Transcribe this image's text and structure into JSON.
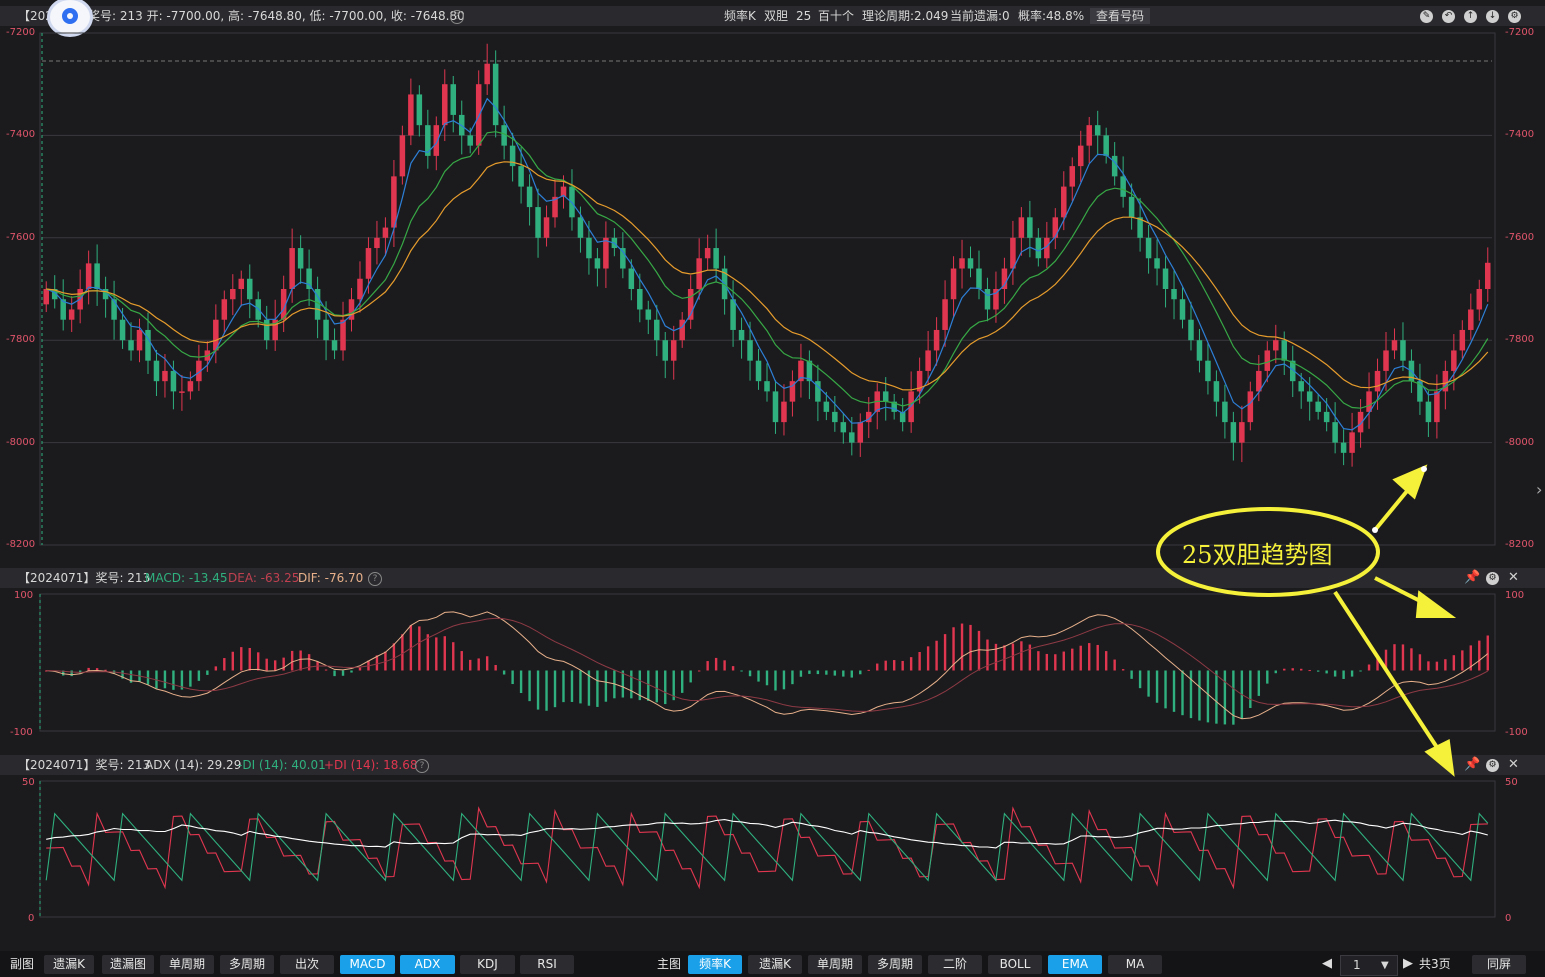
{
  "main": {
    "header": {
      "prefix": "【202",
      "info": "奖号: 213   开: -7700.00, 高: -7648.80, 低: -7700.00, 收: -7648.80",
      "freq": "频率K",
      "mode": "双胆",
      "num": "25",
      "group": "百十个",
      "period": "理论周期:2.049",
      "miss": "当前遗漏:0",
      "prob": "概率:48.8%",
      "lookup": "查看号码"
    },
    "y_labels": [
      "-7200",
      "-7400",
      "-7600",
      "-7800",
      "-8000",
      "-8200"
    ]
  },
  "macd": {
    "header": {
      "prefix": "【2024071】奖号: 213",
      "macd": "MACD: -13.45",
      "dea": "DEA: -63.25",
      "dif": "DIF: -76.70"
    },
    "y_labels": [
      "100",
      "-100"
    ]
  },
  "adx": {
    "header": {
      "prefix": "【2024071】奖号: 213",
      "adx": "ADX (14): 29.29",
      "mdi": "-DI (14): 40.01",
      "pdi": "+DI (14): 18.68"
    },
    "y_labels": [
      "50",
      "0"
    ]
  },
  "annotation": {
    "text": "25双胆趋势图"
  },
  "bottom": {
    "left_label": "副图",
    "left_buttons": [
      "遗漏K",
      "遗漏图",
      "单周期",
      "多周期",
      "出次",
      "MACD",
      "ADX",
      "KDJ",
      "RSI"
    ],
    "left_active": [
      "MACD",
      "ADX"
    ],
    "mid_label": "主图",
    "mid_buttons": [
      "频率K",
      "遗漏K",
      "单周期",
      "多周期",
      "二阶",
      "BOLL",
      "EMA",
      "MA"
    ],
    "mid_active": [
      "频率K",
      "EMA"
    ],
    "page_value": "1",
    "total_pages": "共3页",
    "same_screen": "同屏"
  },
  "colors": {
    "up": "#e0364f",
    "down": "#2fb07e",
    "ema_fast": "#2d7fd6",
    "ema_mid": "#37a845",
    "ema_slow": "#e69c2c",
    "accent": "#1aa0e8",
    "annotation": "#f5f03a"
  },
  "chart_data": [
    {
      "type": "candlestick",
      "title": "",
      "ylim": [
        -8200,
        -7200
      ],
      "yticks": [
        -7200,
        -7400,
        -7600,
        -7800,
        -8000,
        -8200
      ],
      "last": {
        "open": -7700.0,
        "high": -7648.8,
        "low": -7700.0,
        "close": -7648.8
      },
      "closes": [
        -7700,
        -7720,
        -7760,
        -7740,
        -7700,
        -7650,
        -7700,
        -7720,
        -7760,
        -7800,
        -7820,
        -7780,
        -7840,
        -7880,
        -7860,
        -7900,
        -7900,
        -7880,
        -7840,
        -7820,
        -7760,
        -7720,
        -7700,
        -7680,
        -7720,
        -7760,
        -7800,
        -7760,
        -7700,
        -7620,
        -7660,
        -7700,
        -7760,
        -7800,
        -7820,
        -7760,
        -7720,
        -7680,
        -7620,
        -7600,
        -7580,
        -7480,
        -7400,
        -7320,
        -7380,
        -7440,
        -7380,
        -7300,
        -7360,
        -7400,
        -7420,
        -7300,
        -7260,
        -7380,
        -7420,
        -7460,
        -7500,
        -7540,
        -7600,
        -7560,
        -7520,
        -7500,
        -7560,
        -7600,
        -7640,
        -7660,
        -7600,
        -7620,
        -7660,
        -7700,
        -7740,
        -7760,
        -7800,
        -7840,
        -7800,
        -7760,
        -7700,
        -7640,
        -7620,
        -7660,
        -7720,
        -7780,
        -7800,
        -7840,
        -7880,
        -7900,
        -7960,
        -7920,
        -7880,
        -7840,
        -7880,
        -7920,
        -7940,
        -7960,
        -7980,
        -8000,
        -7960,
        -7940,
        -7900,
        -7920,
        -7940,
        -7960,
        -7900,
        -7860,
        -7820,
        -7780,
        -7720,
        -7660,
        -7640,
        -7660,
        -7700,
        -7740,
        -7700,
        -7660,
        -7600,
        -7560,
        -7600,
        -7640,
        -7600,
        -7560,
        -7500,
        -7460,
        -7420,
        -7380,
        -7400,
        -7440,
        -7480,
        -7520,
        -7560,
        -7600,
        -7640,
        -7660,
        -7700,
        -7720,
        -7760,
        -7800,
        -7840,
        -7880,
        -7920,
        -7960,
        -8000,
        -7960,
        -7900,
        -7860,
        -7820,
        -7800,
        -7840,
        -7880,
        -7900,
        -7920,
        -7940,
        -7960,
        -8000,
        -8020,
        -7980,
        -7940,
        -7900,
        -7860,
        -7820,
        -7800,
        -7840,
        -7880,
        -7920,
        -7960,
        -7900,
        -7860,
        -7820,
        -7780,
        -7740,
        -7700,
        -7648.8
      ]
    },
    {
      "type": "bar",
      "title": "MACD",
      "ylim": [
        -100,
        100
      ],
      "yticks": [
        100,
        -100
      ]
    },
    {
      "type": "line",
      "title": "ADX",
      "ylim": [
        0,
        50
      ],
      "yticks": [
        50,
        0
      ]
    }
  ]
}
